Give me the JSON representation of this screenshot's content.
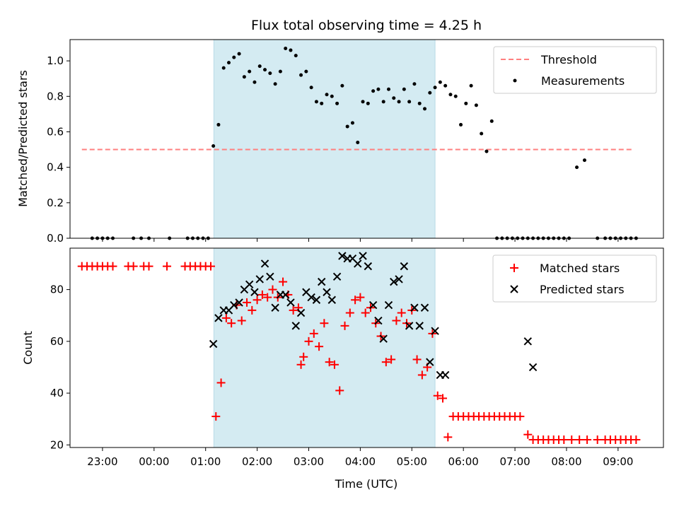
{
  "chart_data": [
    {
      "type": "scatter",
      "title": "Flux total observing time = 4.25 h",
      "xlabel": "",
      "ylabel": "Matched/Predicted stars",
      "xlim_hours": [
        22.37,
        33.88
      ],
      "ylim": [
        0,
        1.12
      ],
      "yticks": [
        "0.0",
        "0.2",
        "0.4",
        "0.6",
        "0.8",
        "1.0"
      ],
      "shaded_interval_hours": [
        25.16,
        29.45
      ],
      "shade_color": "#d4ebf2",
      "legend_position": "upper right",
      "threshold": {
        "label": "Threshold",
        "value": 0.5,
        "x_range": [
          22.6,
          33.3
        ],
        "color": "#ff7f7f"
      },
      "series": [
        {
          "name": "Measurements",
          "marker": "dot",
          "color": "#000000",
          "x": [
            22.8,
            22.9,
            23.0,
            23.1,
            23.2,
            23.6,
            23.75,
            23.9,
            24.3,
            24.65,
            24.75,
            24.85,
            24.95,
            25.05,
            25.15,
            25.25,
            25.35,
            25.45,
            25.55,
            25.65,
            25.75,
            25.85,
            25.95,
            26.05,
            26.15,
            26.25,
            26.35,
            26.45,
            26.55,
            26.65,
            26.75,
            26.85,
            26.95,
            27.05,
            27.15,
            27.25,
            27.35,
            27.45,
            27.55,
            27.65,
            27.75,
            27.85,
            27.95,
            28.05,
            28.15,
            28.25,
            28.35,
            28.45,
            28.55,
            28.65,
            28.75,
            28.85,
            28.95,
            29.05,
            29.15,
            29.25,
            29.35,
            29.45,
            29.55,
            29.65,
            29.75,
            29.85,
            29.95,
            30.05,
            30.15,
            30.25,
            30.35,
            30.45,
            30.55,
            30.65,
            30.75,
            30.85,
            30.95,
            31.05,
            31.15,
            31.25,
            31.35,
            31.45,
            31.55,
            31.65,
            31.75,
            31.85,
            31.95,
            32.05,
            32.2,
            32.35,
            32.6,
            32.75,
            32.85,
            32.95,
            33.05,
            33.15,
            33.25,
            33.35
          ],
          "y": [
            0,
            0,
            0,
            0,
            0,
            0,
            0,
            0,
            0,
            0,
            0,
            0,
            0,
            0,
            0.52,
            0.64,
            0.96,
            0.99,
            1.02,
            1.04,
            0.91,
            0.94,
            0.88,
            0.97,
            0.95,
            0.93,
            0.87,
            0.94,
            1.07,
            1.06,
            1.03,
            0.92,
            0.94,
            0.85,
            0.77,
            0.76,
            0.81,
            0.8,
            0.76,
            0.86,
            0.63,
            0.65,
            0.54,
            0.77,
            0.76,
            0.83,
            0.84,
            0.77,
            0.84,
            0.79,
            0.77,
            0.84,
            0.77,
            0.87,
            0.76,
            0.73,
            0.82,
            0.85,
            0.88,
            0.86,
            0.81,
            0.8,
            0.64,
            0.76,
            0.86,
            0.75,
            0.59,
            0.49,
            0.66,
            0,
            0,
            0,
            0,
            0,
            0,
            0,
            0,
            0,
            0,
            0,
            0,
            0,
            0,
            0,
            0.4,
            0.44,
            0,
            0,
            0,
            0,
            0,
            0,
            0,
            0
          ]
        }
      ]
    },
    {
      "type": "scatter",
      "title": "",
      "xlabel": "Time (UTC)",
      "ylabel": "Count",
      "xlim_hours": [
        22.37,
        33.88
      ],
      "ylim": [
        19,
        96
      ],
      "yticks": [
        "20",
        "40",
        "60",
        "80"
      ],
      "xtick_hours": [
        23,
        24,
        25,
        26,
        27,
        28,
        29,
        30,
        31,
        32,
        33
      ],
      "xtick_labels": [
        "23:00",
        "00:00",
        "01:00",
        "02:00",
        "03:00",
        "04:00",
        "05:00",
        "06:00",
        "07:00",
        "08:00",
        "09:00"
      ],
      "shaded_interval_hours": [
        25.16,
        29.45
      ],
      "shade_color": "#d4ebf2",
      "legend_position": "upper right",
      "series": [
        {
          "name": "Matched stars",
          "marker": "plus",
          "color": "#ff0000",
          "x": [
            22.6,
            22.7,
            22.8,
            22.9,
            23.0,
            23.1,
            23.2,
            23.5,
            23.6,
            23.8,
            23.9,
            24.25,
            24.6,
            24.7,
            24.8,
            24.9,
            25.0,
            25.1,
            25.2,
            25.3,
            25.4,
            25.5,
            25.6,
            25.7,
            25.8,
            25.9,
            26.0,
            26.1,
            26.2,
            26.3,
            26.4,
            26.5,
            26.6,
            26.7,
            26.8,
            26.85,
            26.9,
            27.0,
            27.1,
            27.2,
            27.3,
            27.4,
            27.5,
            27.6,
            27.7,
            27.8,
            27.9,
            28.0,
            28.1,
            28.2,
            28.3,
            28.4,
            28.5,
            28.6,
            28.7,
            28.8,
            28.9,
            29.0,
            29.1,
            29.2,
            29.3,
            29.4,
            29.5,
            29.6,
            29.7,
            29.8,
            29.9,
            30.0,
            30.1,
            30.2,
            30.3,
            30.4,
            30.5,
            30.6,
            30.7,
            30.8,
            30.9,
            31.0,
            31.1,
            31.25,
            31.35,
            31.45,
            31.55,
            31.65,
            31.75,
            31.85,
            31.95,
            32.1,
            32.25,
            32.4,
            32.6,
            32.75,
            32.85,
            32.95,
            33.05,
            33.15,
            33.25,
            33.35
          ],
          "y": [
            89,
            89,
            89,
            89,
            89,
            89,
            89,
            89,
            89,
            89,
            89,
            89,
            89,
            89,
            89,
            89,
            89,
            89,
            31,
            44,
            69,
            67,
            74,
            68,
            75,
            72,
            76,
            78,
            77,
            80,
            77,
            83,
            78,
            72,
            73,
            51,
            54,
            60,
            63,
            58,
            67,
            52,
            51,
            41,
            66,
            71,
            76,
            77,
            71,
            73,
            67,
            62,
            52,
            53,
            68,
            71,
            67,
            72,
            53,
            47,
            50,
            63,
            39,
            38,
            23,
            31,
            31,
            31,
            31,
            31,
            31,
            31,
            31,
            31,
            31,
            31,
            31,
            31,
            31,
            24,
            22,
            22,
            22,
            22,
            22,
            22,
            22,
            22,
            22,
            22,
            22,
            22,
            22,
            22,
            22,
            22,
            22,
            22
          ]
        },
        {
          "name": "Predicted stars",
          "marker": "x",
          "color": "#000000",
          "x": [
            25.15,
            25.25,
            25.35,
            25.45,
            25.55,
            25.65,
            25.75,
            25.85,
            25.95,
            26.05,
            26.15,
            26.25,
            26.35,
            26.45,
            26.55,
            26.65,
            26.75,
            26.85,
            26.95,
            27.05,
            27.15,
            27.25,
            27.35,
            27.45,
            27.55,
            27.65,
            27.75,
            27.85,
            27.95,
            28.05,
            28.15,
            28.25,
            28.35,
            28.45,
            28.55,
            28.65,
            28.75,
            28.85,
            28.95,
            29.05,
            29.15,
            29.25,
            29.35,
            29.45,
            29.55,
            29.65,
            31.25,
            31.35
          ],
          "y": [
            59,
            69,
            72,
            72,
            74,
            75,
            80,
            82,
            79,
            84,
            90,
            85,
            73,
            78,
            78,
            75,
            66,
            71,
            79,
            77,
            76,
            83,
            79,
            76,
            85,
            93,
            92,
            92,
            90,
            93,
            89,
            74,
            68,
            61,
            74,
            83,
            84,
            89,
            66,
            73,
            66,
            73,
            52,
            64,
            47,
            47,
            60,
            50
          ]
        }
      ]
    }
  ]
}
